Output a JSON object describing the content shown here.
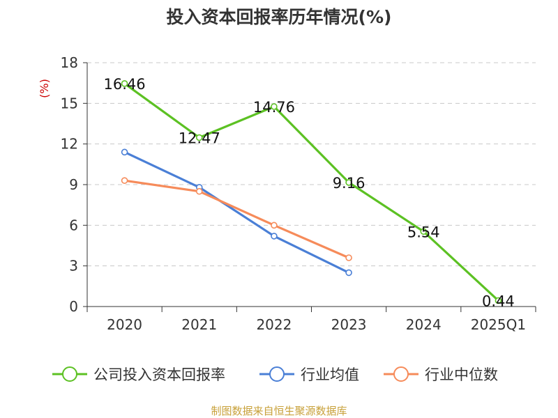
{
  "colors": {
    "company": "#5cc123",
    "industry_avg": "#4a7fd6",
    "industry_median": "#f68b5a",
    "grid": "#c8c8c8",
    "axis": "#333333",
    "ylabel": "#cc0000",
    "source": "#c8a13a"
  },
  "chart_data": {
    "type": "line",
    "title": "投入资本回报率历年情况(%)",
    "xlabel": "",
    "ylabel": "(%)",
    "ylim": [
      0,
      18
    ],
    "yticks": [
      0,
      3,
      6,
      9,
      12,
      15,
      18
    ],
    "grid": true,
    "legend_position": "bottom",
    "categories": [
      "2020",
      "2021",
      "2022",
      "2023",
      "2024",
      "2025Q1"
    ],
    "series": [
      {
        "name": "公司投入资本回报率",
        "values": [
          16.46,
          12.47,
          14.76,
          9.16,
          5.54,
          0.44
        ],
        "labels": [
          "16.46",
          "12.47",
          "14.76",
          "9.16",
          "5.54",
          "0.44"
        ]
      },
      {
        "name": "行业均值",
        "values": [
          11.4,
          8.8,
          5.2,
          2.5,
          null,
          null
        ]
      },
      {
        "name": "行业中位数",
        "values": [
          9.3,
          8.5,
          6.0,
          3.6,
          null,
          null
        ]
      }
    ],
    "source_note": "制图数据来自恒生聚源数据库"
  }
}
